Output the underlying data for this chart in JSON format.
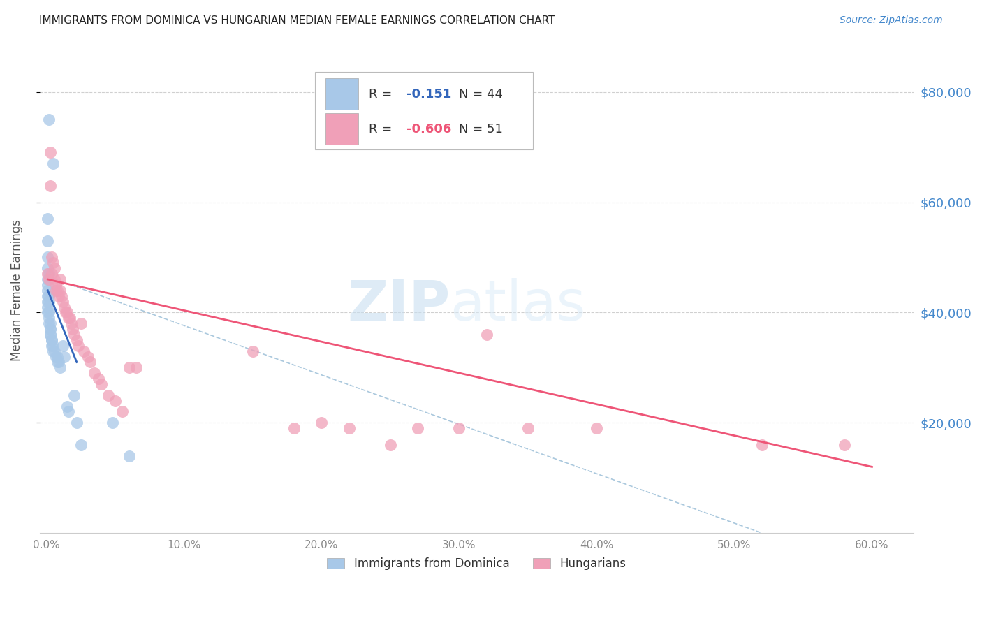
{
  "title": "IMMIGRANTS FROM DOMINICA VS HUNGARIAN MEDIAN FEMALE EARNINGS CORRELATION CHART",
  "source": "Source: ZipAtlas.com",
  "ylabel": "Median Female Earnings",
  "right_yticks": [
    "$80,000",
    "$60,000",
    "$40,000",
    "$20,000"
  ],
  "right_ytick_vals": [
    80000,
    60000,
    40000,
    20000
  ],
  "legend_blue_r": "-0.151",
  "legend_blue_n": "44",
  "legend_pink_r": "-0.606",
  "legend_pink_n": "51",
  "blue_scatter_x": [
    0.002,
    0.005,
    0.001,
    0.001,
    0.001,
    0.001,
    0.002,
    0.001,
    0.001,
    0.001,
    0.001,
    0.002,
    0.002,
    0.001,
    0.001,
    0.001,
    0.002,
    0.002,
    0.002,
    0.003,
    0.003,
    0.003,
    0.003,
    0.003,
    0.004,
    0.004,
    0.004,
    0.005,
    0.005,
    0.006,
    0.007,
    0.008,
    0.008,
    0.009,
    0.01,
    0.012,
    0.013,
    0.015,
    0.016,
    0.02,
    0.022,
    0.025,
    0.048,
    0.06
  ],
  "blue_scatter_y": [
    75000,
    67000,
    57000,
    53000,
    50000,
    48000,
    47000,
    46000,
    45000,
    44000,
    43000,
    43000,
    42000,
    42000,
    41000,
    40000,
    40000,
    39000,
    38000,
    38000,
    37000,
    37000,
    36000,
    36000,
    35000,
    35000,
    34000,
    34000,
    33000,
    33000,
    32000,
    32000,
    31000,
    31000,
    30000,
    34000,
    32000,
    23000,
    22000,
    25000,
    20000,
    16000,
    20000,
    14000
  ],
  "pink_scatter_x": [
    0.001,
    0.002,
    0.003,
    0.003,
    0.004,
    0.004,
    0.005,
    0.006,
    0.006,
    0.007,
    0.007,
    0.008,
    0.009,
    0.01,
    0.01,
    0.011,
    0.012,
    0.013,
    0.014,
    0.015,
    0.016,
    0.017,
    0.018,
    0.019,
    0.02,
    0.022,
    0.023,
    0.025,
    0.027,
    0.03,
    0.032,
    0.035,
    0.038,
    0.04,
    0.045,
    0.05,
    0.055,
    0.06,
    0.065,
    0.15,
    0.18,
    0.2,
    0.22,
    0.25,
    0.27,
    0.3,
    0.32,
    0.35,
    0.4,
    0.52,
    0.58
  ],
  "pink_scatter_y": [
    47000,
    46000,
    69000,
    63000,
    50000,
    47000,
    49000,
    48000,
    46000,
    45000,
    44000,
    44000,
    43000,
    46000,
    44000,
    43000,
    42000,
    41000,
    40000,
    40000,
    39000,
    39000,
    38000,
    37000,
    36000,
    35000,
    34000,
    38000,
    33000,
    32000,
    31000,
    29000,
    28000,
    27000,
    25000,
    24000,
    22000,
    30000,
    30000,
    33000,
    19000,
    20000,
    19000,
    16000,
    19000,
    19000,
    36000,
    19000,
    19000,
    16000,
    16000
  ],
  "blue_line_x": [
    0.001,
    0.022
  ],
  "blue_line_y": [
    44000,
    31000
  ],
  "pink_line_x": [
    0.001,
    0.6
  ],
  "pink_line_y": [
    46000,
    12000
  ],
  "dashed_line_x": [
    0.001,
    0.52
  ],
  "dashed_line_y": [
    46500,
    0
  ],
  "xlim": [
    -0.005,
    0.63
  ],
  "ylim": [
    0,
    88000
  ],
  "xticks": [
    0.0,
    0.1,
    0.2,
    0.3,
    0.4,
    0.5,
    0.6
  ],
  "xtick_labels": [
    "0.0%",
    "10.0%",
    "20.0%",
    "30.0%",
    "40.0%",
    "50.0%",
    "60.0%"
  ],
  "watermark_zip": "ZIP",
  "watermark_atlas": "atlas",
  "background_color": "#ffffff",
  "grid_color": "#d0d0d0",
  "blue_scatter_color": "#a8c8e8",
  "pink_scatter_color": "#f0a0b8",
  "blue_line_color": "#3366bb",
  "pink_line_color": "#ee5577",
  "dashed_line_color": "#aac8dd",
  "title_color": "#222222",
  "right_axis_color": "#4488cc",
  "source_color": "#4488cc",
  "tick_label_color": "#888888"
}
